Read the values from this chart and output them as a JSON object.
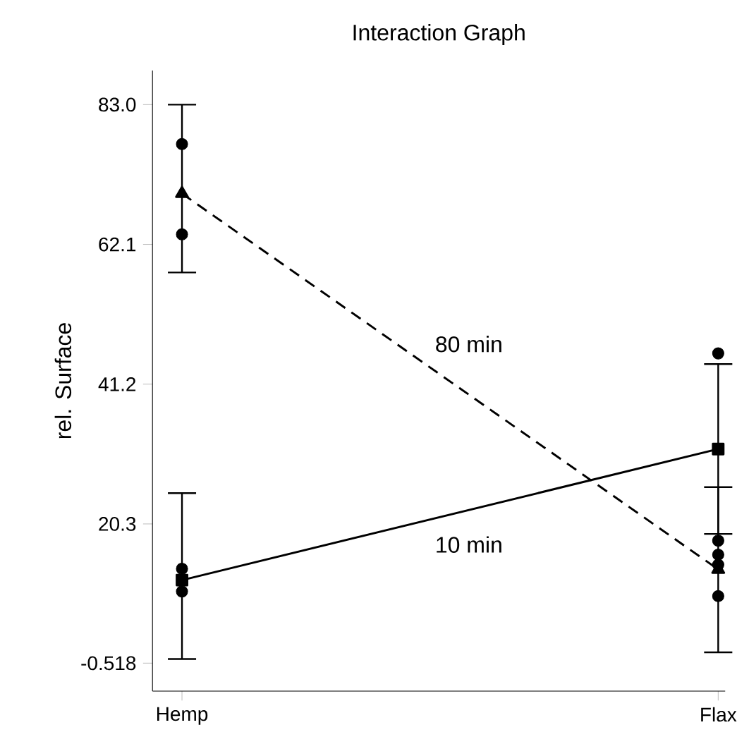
{
  "chart_data": {
    "type": "line",
    "title": "Interaction Graph",
    "ylabel": "rel. Surface",
    "categories": [
      "Hemp",
      "Flax"
    ],
    "ylim": [
      -4.7,
      88.1
    ],
    "yticks": [
      {
        "value": -0.518,
        "label": "-0.518"
      },
      {
        "value": 20.3,
        "label": "20.3"
      },
      {
        "value": 41.2,
        "label": "41.2"
      },
      {
        "value": 62.1,
        "label": "62.1"
      },
      {
        "value": 83.0,
        "label": "83.0"
      }
    ],
    "series": [
      {
        "name": "80 min",
        "color": "#000000",
        "values": [
          69.7,
          13.5
        ],
        "errors": [
          [
            57.9,
            83.0
          ],
          [
            1.1,
            25.8
          ]
        ],
        "marker": "triangle",
        "line_style": "dashed"
      },
      {
        "name": "10 min",
        "color": "#000000",
        "values": [
          11.9,
          31.5
        ],
        "errors": [
          [
            0.1,
            24.9
          ],
          [
            18.8,
            44.2
          ]
        ],
        "marker": "square",
        "line_style": "solid"
      },
      {
        "type": "scatter",
        "color": "#000000",
        "marker": "circle",
        "x": [
          "Hemp",
          "Hemp",
          "Hemp",
          "Hemp",
          "Flax",
          "Flax",
          "Flax",
          "Flax",
          "Flax"
        ],
        "values": [
          77.1,
          63.6,
          13.6,
          10.2,
          45.8,
          17.8,
          15.7,
          14.2,
          9.5
        ]
      }
    ]
  }
}
